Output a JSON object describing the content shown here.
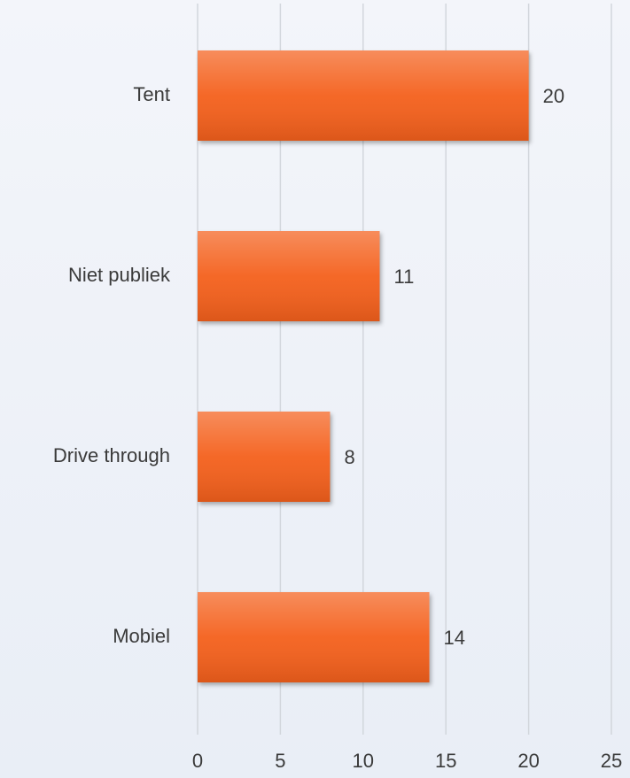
{
  "chart_data": {
    "type": "bar",
    "orientation": "horizontal",
    "categories": [
      "Tent",
      "Niet publiek",
      "Drive through",
      "Mobiel"
    ],
    "values": [
      20,
      11,
      8,
      14
    ],
    "color": "#f4601c",
    "xlim": [
      0,
      25
    ],
    "xticks": [
      0,
      5,
      10,
      15,
      20,
      25
    ],
    "grid": true
  }
}
